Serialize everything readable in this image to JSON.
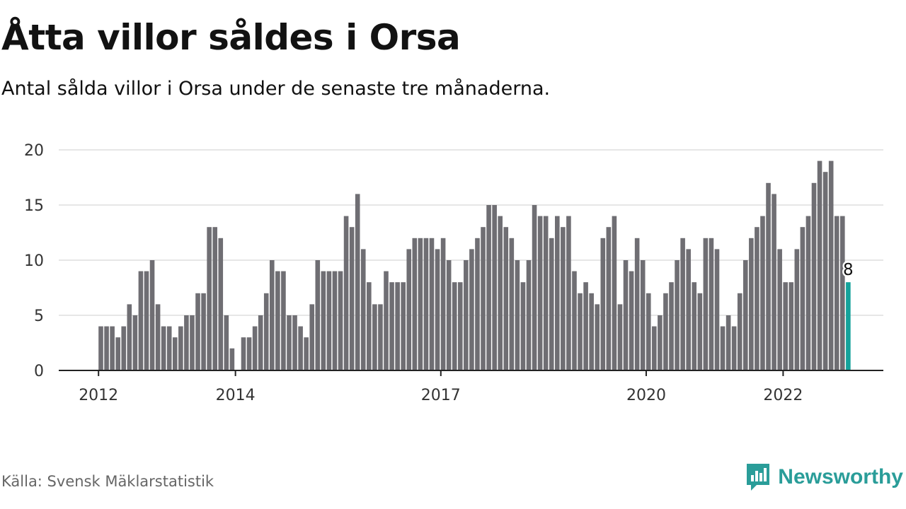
{
  "title": "Åtta villor såldes i Orsa",
  "subtitle": "Antal sålda villor i Orsa under de senaste tre månaderna.",
  "source": "Källa: Svensk Mäklarstatistik",
  "brand": {
    "name": "Newsworthy",
    "icon": "newsworthy-logo-icon",
    "color": "#2a9d99"
  },
  "colors": {
    "bar": "#6f6e73",
    "highlight": "#14a29b",
    "grid": "#dddddd",
    "axis": "#222222"
  },
  "chart_data": {
    "type": "bar",
    "start": "2012-01",
    "ylim": [
      0,
      20
    ],
    "yticks": [
      0,
      5,
      10,
      15,
      20
    ],
    "xticks": [
      {
        "label": "2012",
        "index": 0
      },
      {
        "label": "2014",
        "index": 24
      },
      {
        "label": "2017",
        "index": 60
      },
      {
        "label": "2020",
        "index": 96
      },
      {
        "label": "2022",
        "index": 120
      }
    ],
    "values": [
      4,
      4,
      4,
      3,
      4,
      6,
      5,
      9,
      9,
      10,
      6,
      4,
      4,
      3,
      4,
      5,
      5,
      7,
      7,
      13,
      13,
      12,
      5,
      2,
      0,
      3,
      3,
      4,
      5,
      7,
      10,
      9,
      9,
      5,
      5,
      4,
      3,
      6,
      10,
      9,
      9,
      9,
      9,
      14,
      13,
      16,
      11,
      8,
      6,
      6,
      9,
      8,
      8,
      8,
      11,
      12,
      12,
      12,
      12,
      11,
      12,
      10,
      8,
      8,
      10,
      11,
      12,
      13,
      15,
      15,
      14,
      13,
      12,
      10,
      8,
      10,
      15,
      14,
      14,
      12,
      14,
      13,
      14,
      9,
      7,
      8,
      7,
      6,
      12,
      13,
      14,
      6,
      10,
      9,
      12,
      10,
      7,
      4,
      5,
      7,
      8,
      10,
      12,
      11,
      8,
      7,
      12,
      12,
      11,
      4,
      5,
      4,
      7,
      10,
      12,
      13,
      14,
      17,
      16,
      11,
      8,
      8,
      11,
      13,
      14,
      17,
      19,
      18,
      19,
      14,
      14,
      8
    ],
    "highlight_index": 131,
    "highlight_label": "8"
  }
}
